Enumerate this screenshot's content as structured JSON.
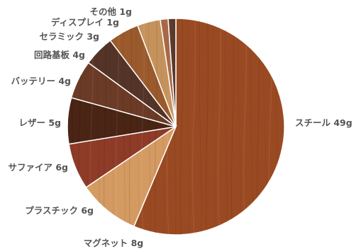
{
  "chart_data": {
    "type": "pie",
    "title": "",
    "slices": [
      {
        "label": "スチール 49g",
        "name": "スチール",
        "value": 49,
        "color": "#9a4a22"
      },
      {
        "label": "マグネット 8g",
        "name": "マグネット",
        "value": 8,
        "color": "#d49a62"
      },
      {
        "label": "プラスチック 6g",
        "name": "プラスチック",
        "value": 6,
        "color": "#8e3b28"
      },
      {
        "label": "サファイア 6g",
        "name": "サファイア",
        "value": 6,
        "color": "#4a2414"
      },
      {
        "label": "レザー 5g",
        "name": "レザー",
        "value": 5,
        "color": "#6b3b26"
      },
      {
        "label": "バッテリー 4g",
        "name": "バッテリー",
        "value": 4,
        "color": "#553428"
      },
      {
        "label": "回路基板 4g",
        "name": "回路基板",
        "value": 4,
        "color": "#9a5a2c"
      },
      {
        "label": "セラミック 3g",
        "name": "セラミック",
        "value": 3,
        "color": "#c6925c"
      },
      {
        "label": "ディスプレイ 1g",
        "name": "ディスプレイ",
        "value": 1,
        "color": "#a86846"
      },
      {
        "label": "その他 1g",
        "name": "その他",
        "value": 1,
        "color": "#5c3a2c"
      }
    ],
    "legend": "none",
    "direction": "clockwise"
  }
}
